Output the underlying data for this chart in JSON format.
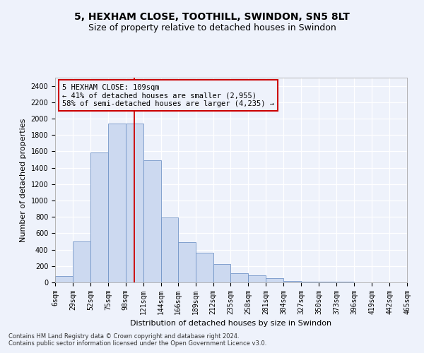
{
  "title1": "5, HEXHAM CLOSE, TOOTHILL, SWINDON, SN5 8LT",
  "title2": "Size of property relative to detached houses in Swindon",
  "xlabel": "Distribution of detached houses by size in Swindon",
  "ylabel": "Number of detached properties",
  "footnote1": "Contains HM Land Registry data © Crown copyright and database right 2024.",
  "footnote2": "Contains public sector information licensed under the Open Government Licence v3.0.",
  "annotation_title": "5 HEXHAM CLOSE: 109sqm",
  "annotation_line1": "← 41% of detached houses are smaller (2,955)",
  "annotation_line2": "58% of semi-detached houses are larger (4,235) →",
  "marker_value": 109,
  "bar_color": "#ccd9f0",
  "bar_edge_color": "#7396c8",
  "marker_color": "#cc0000",
  "annotation_box_edge": "#cc0000",
  "bins": [
    6,
    29,
    52,
    75,
    98,
    121,
    144,
    166,
    189,
    212,
    235,
    258,
    281,
    304,
    327,
    350,
    373,
    396,
    419,
    442,
    465
  ],
  "counts": [
    75,
    500,
    1590,
    1940,
    1940,
    1490,
    790,
    490,
    360,
    220,
    115,
    85,
    50,
    20,
    10,
    10,
    5,
    0,
    0,
    0
  ],
  "ylim": [
    0,
    2500
  ],
  "yticks": [
    0,
    200,
    400,
    600,
    800,
    1000,
    1200,
    1400,
    1600,
    1800,
    2000,
    2200,
    2400
  ],
  "tick_labels": [
    "6sqm",
    "29sqm",
    "52sqm",
    "75sqm",
    "98sqm",
    "121sqm",
    "144sqm",
    "166sqm",
    "189sqm",
    "212sqm",
    "235sqm",
    "258sqm",
    "281sqm",
    "304sqm",
    "327sqm",
    "350sqm",
    "373sqm",
    "396sqm",
    "419sqm",
    "442sqm",
    "465sqm"
  ],
  "bg_color": "#eef2fb",
  "grid_color": "#ffffff",
  "title1_fontsize": 10,
  "title2_fontsize": 9,
  "axis_label_fontsize": 8,
  "tick_fontsize": 7,
  "footnote_fontsize": 6,
  "annotation_fontsize": 7.5
}
